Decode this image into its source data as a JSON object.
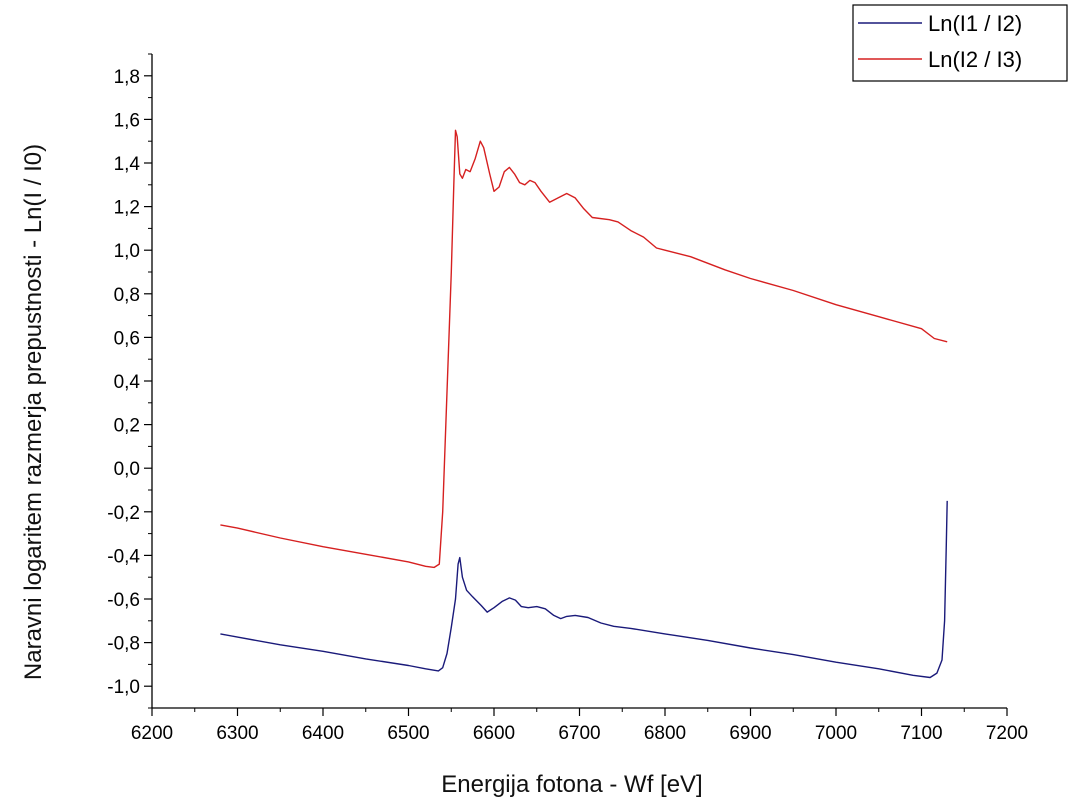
{
  "chart_data": {
    "type": "line",
    "xlabel": "Energija fotona - Wf [eV]",
    "ylabel": "Naravni logaritem razmerja prepustnosti - Ln(I / I0)",
    "xlim": [
      6200,
      7200
    ],
    "ylim": [
      -1.1,
      1.9
    ],
    "x_ticks": [
      6200,
      6300,
      6400,
      6500,
      6600,
      6700,
      6800,
      6900,
      7000,
      7100,
      7200
    ],
    "x_tick_labels": [
      "6200",
      "6300",
      "6400",
      "6500",
      "6600",
      "6700",
      "6800",
      "6900",
      "7000",
      "7100",
      "7200"
    ],
    "y_ticks": [
      1.8,
      1.6,
      1.4,
      1.2,
      1.0,
      0.8,
      0.6,
      0.4,
      0.2,
      0.0,
      -0.2,
      -0.4,
      -0.6,
      -0.8,
      -1.0
    ],
    "y_tick_labels": [
      "1,8",
      "1,6",
      "1,4",
      "1,2",
      "1,0",
      "0,8",
      "0,6",
      "0,4",
      "0,2",
      "0,0",
      "-0,2",
      "-0,4",
      "-0,6",
      "-0,8",
      "-1,0"
    ],
    "grid": false,
    "legend_position": "top-right",
    "series": [
      {
        "name": "Ln(I1 / I2)",
        "color": "#1a1a7a",
        "points": [
          [
            6280,
            -0.76
          ],
          [
            6300,
            -0.775
          ],
          [
            6350,
            -0.81
          ],
          [
            6400,
            -0.84
          ],
          [
            6450,
            -0.875
          ],
          [
            6500,
            -0.905
          ],
          [
            6520,
            -0.92
          ],
          [
            6535,
            -0.93
          ],
          [
            6540,
            -0.915
          ],
          [
            6545,
            -0.85
          ],
          [
            6550,
            -0.73
          ],
          [
            6555,
            -0.6
          ],
          [
            6558,
            -0.44
          ],
          [
            6560,
            -0.41
          ],
          [
            6563,
            -0.5
          ],
          [
            6568,
            -0.56
          ],
          [
            6575,
            -0.59
          ],
          [
            6585,
            -0.63
          ],
          [
            6592,
            -0.66
          ],
          [
            6600,
            -0.64
          ],
          [
            6610,
            -0.61
          ],
          [
            6618,
            -0.595
          ],
          [
            6625,
            -0.605
          ],
          [
            6632,
            -0.635
          ],
          [
            6640,
            -0.64
          ],
          [
            6650,
            -0.635
          ],
          [
            6660,
            -0.645
          ],
          [
            6670,
            -0.675
          ],
          [
            6678,
            -0.69
          ],
          [
            6685,
            -0.68
          ],
          [
            6695,
            -0.675
          ],
          [
            6710,
            -0.685
          ],
          [
            6725,
            -0.71
          ],
          [
            6740,
            -0.725
          ],
          [
            6760,
            -0.735
          ],
          [
            6800,
            -0.76
          ],
          [
            6850,
            -0.79
          ],
          [
            6900,
            -0.825
          ],
          [
            6950,
            -0.855
          ],
          [
            7000,
            -0.89
          ],
          [
            7050,
            -0.92
          ],
          [
            7090,
            -0.95
          ],
          [
            7110,
            -0.96
          ],
          [
            7118,
            -0.94
          ],
          [
            7124,
            -0.88
          ],
          [
            7127,
            -0.7
          ],
          [
            7129,
            -0.35
          ],
          [
            7130,
            -0.15
          ]
        ]
      },
      {
        "name": "Ln(I2 / I3)",
        "color": "#d62020",
        "points": [
          [
            6280,
            -0.26
          ],
          [
            6300,
            -0.275
          ],
          [
            6350,
            -0.32
          ],
          [
            6400,
            -0.36
          ],
          [
            6450,
            -0.395
          ],
          [
            6500,
            -0.43
          ],
          [
            6520,
            -0.45
          ],
          [
            6530,
            -0.455
          ],
          [
            6536,
            -0.44
          ],
          [
            6540,
            -0.2
          ],
          [
            6545,
            0.35
          ],
          [
            6550,
            0.9
          ],
          [
            6553,
            1.3
          ],
          [
            6555,
            1.55
          ],
          [
            6557,
            1.52
          ],
          [
            6560,
            1.35
          ],
          [
            6563,
            1.33
          ],
          [
            6567,
            1.37
          ],
          [
            6572,
            1.36
          ],
          [
            6578,
            1.42
          ],
          [
            6584,
            1.5
          ],
          [
            6588,
            1.47
          ],
          [
            6595,
            1.35
          ],
          [
            6600,
            1.27
          ],
          [
            6606,
            1.29
          ],
          [
            6612,
            1.36
          ],
          [
            6618,
            1.38
          ],
          [
            6624,
            1.35
          ],
          [
            6630,
            1.31
          ],
          [
            6636,
            1.3
          ],
          [
            6642,
            1.32
          ],
          [
            6648,
            1.31
          ],
          [
            6655,
            1.27
          ],
          [
            6665,
            1.22
          ],
          [
            6675,
            1.24
          ],
          [
            6685,
            1.26
          ],
          [
            6695,
            1.24
          ],
          [
            6705,
            1.19
          ],
          [
            6715,
            1.15
          ],
          [
            6735,
            1.14
          ],
          [
            6745,
            1.13
          ],
          [
            6760,
            1.09
          ],
          [
            6775,
            1.06
          ],
          [
            6790,
            1.01
          ],
          [
            6800,
            1.0
          ],
          [
            6830,
            0.97
          ],
          [
            6870,
            0.91
          ],
          [
            6900,
            0.87
          ],
          [
            6950,
            0.815
          ],
          [
            7000,
            0.75
          ],
          [
            7050,
            0.695
          ],
          [
            7100,
            0.64
          ],
          [
            7115,
            0.595
          ],
          [
            7130,
            0.58
          ]
        ]
      }
    ]
  }
}
